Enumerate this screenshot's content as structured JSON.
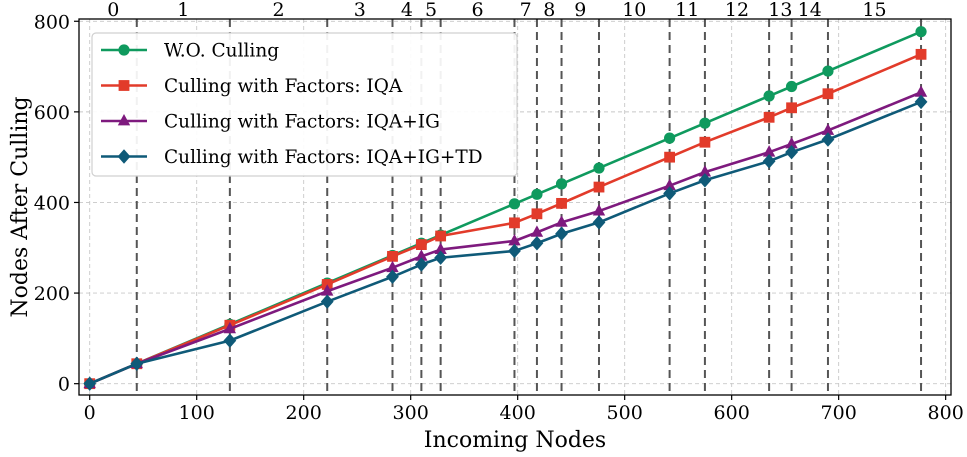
{
  "chart_data": {
    "type": "line",
    "title": "",
    "xlabel": "Incoming Nodes",
    "ylabel": "Nodes After Culling",
    "xlim": [
      -10,
      805
    ],
    "ylim": [
      -25,
      805
    ],
    "xticks": [
      0,
      100,
      200,
      300,
      400,
      500,
      600,
      700,
      800
    ],
    "yticks": [
      0,
      200,
      400,
      600,
      800
    ],
    "grid": true,
    "legend_position": "top-left",
    "x": [
      0,
      44,
      131,
      222,
      283,
      310,
      328,
      397,
      418,
      441,
      476,
      542,
      575,
      635,
      656,
      690,
      777
    ],
    "series": [
      {
        "name": "W.O. Culling",
        "color": "#0f9a5e",
        "marker": "circle",
        "values": [
          0,
          44,
          131,
          222,
          283,
          310,
          328,
          397,
          418,
          441,
          476,
          542,
          575,
          635,
          656,
          690,
          777
        ]
      },
      {
        "name": "Culling with Factors: IQA",
        "color": "#e23b2a",
        "marker": "square",
        "values": [
          0,
          44,
          129,
          219,
          281,
          307,
          326,
          355,
          375,
          398,
          434,
          500,
          533,
          588,
          609,
          640,
          727
        ]
      },
      {
        "name": "Culling with Factors: IQA+IG",
        "color": "#7e1a7e",
        "marker": "triangle",
        "values": [
          0,
          44,
          121,
          204,
          256,
          281,
          296,
          315,
          334,
          356,
          381,
          437,
          467,
          511,
          529,
          559,
          643
        ]
      },
      {
        "name": "Culling with Factors: IQA+IG+TD",
        "color": "#0f5a78",
        "marker": "diamond",
        "values": [
          0,
          44,
          95,
          181,
          236,
          263,
          278,
          293,
          310,
          331,
          356,
          420,
          449,
          491,
          511,
          539,
          622
        ]
      }
    ],
    "segment_boundaries": [
      44,
      131,
      222,
      283,
      310,
      328,
      397,
      418,
      441,
      476,
      542,
      575,
      635,
      656,
      690,
      777
    ],
    "segment_labels": [
      "0",
      "1",
      "2",
      "3",
      "4",
      "5",
      "6",
      "7",
      "8",
      "9",
      "10",
      "11",
      "12",
      "13",
      "14",
      "15"
    ]
  }
}
